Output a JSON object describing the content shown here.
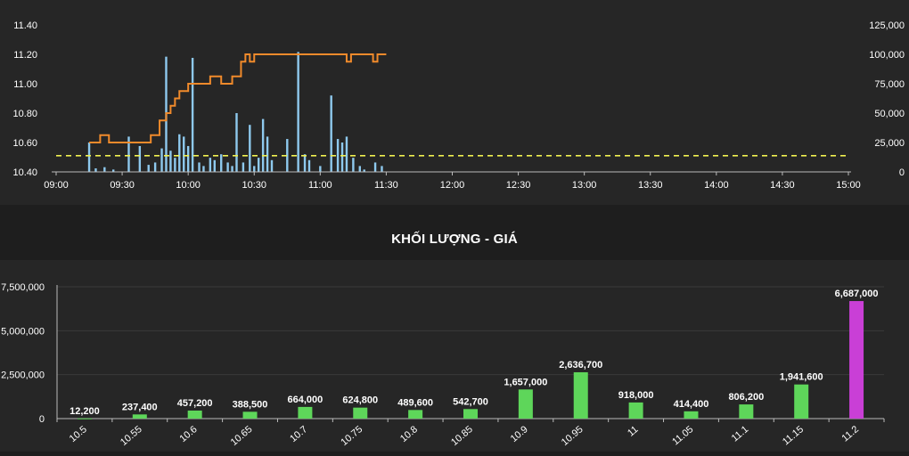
{
  "chart_data": [
    {
      "type": "line",
      "x_ticks": [
        "09:00",
        "09:30",
        "10:00",
        "10:30",
        "11:00",
        "11:30",
        "12:00",
        "12:30",
        "13:00",
        "13:30",
        "14:00",
        "14:30",
        "15:00"
      ],
      "y_left_ticks": [
        "10.40",
        "10.60",
        "10.80",
        "11.00",
        "11.20",
        "11.40"
      ],
      "y_left_range": [
        10.4,
        11.4
      ],
      "y_right_ticks": [
        "0",
        "25,000",
        "50,000",
        "75,000",
        "100,000",
        "125,000"
      ],
      "y_right_range": [
        0,
        125000
      ],
      "reference_price": 10.51,
      "colors": {
        "price": "#f08a2b",
        "volume": "#8ec9ee",
        "reference": "#f0f050"
      },
      "price_series": {
        "x": [
          "09:15",
          "09:18",
          "09:20",
          "09:24",
          "09:30",
          "09:35",
          "09:40",
          "09:43",
          "09:45",
          "09:47",
          "09:50",
          "09:52",
          "09:54",
          "09:56",
          "09:58",
          "10:00",
          "10:03",
          "10:06",
          "10:10",
          "10:15",
          "10:20",
          "10:24",
          "10:26",
          "10:28",
          "10:30",
          "10:33",
          "10:36",
          "10:40",
          "10:50",
          "11:00",
          "11:02",
          "11:10",
          "11:12",
          "11:14",
          "11:16",
          "11:18",
          "11:20",
          "11:22",
          "11:24",
          "11:26",
          "11:28",
          "11:30"
        ],
        "y": [
          10.6,
          10.6,
          10.65,
          10.6,
          10.6,
          10.6,
          10.6,
          10.65,
          10.65,
          10.75,
          10.8,
          10.85,
          10.9,
          10.95,
          10.95,
          11.0,
          11.0,
          11.0,
          11.05,
          11.0,
          11.05,
          11.15,
          11.2,
          11.15,
          11.2,
          11.2,
          11.2,
          11.2,
          11.2,
          11.2,
          11.2,
          11.2,
          11.15,
          11.2,
          11.2,
          11.2,
          11.2,
          11.2,
          11.15,
          11.2,
          11.2,
          11.2
        ]
      },
      "volume_series": {
        "x": [
          "09:15",
          "09:18",
          "09:22",
          "09:26",
          "09:33",
          "09:38",
          "09:42",
          "09:45",
          "09:48",
          "09:50",
          "09:52",
          "09:54",
          "09:56",
          "09:58",
          "10:00",
          "10:02",
          "10:05",
          "10:07",
          "10:10",
          "10:12",
          "10:15",
          "10:18",
          "10:20",
          "10:22",
          "10:25",
          "10:28",
          "10:30",
          "10:32",
          "10:34",
          "10:36",
          "10:38",
          "10:45",
          "10:50",
          "10:53",
          "10:55",
          "11:00",
          "11:05",
          "11:08",
          "11:10",
          "11:12",
          "11:15",
          "11:18",
          "11:20",
          "11:25",
          "11:28"
        ],
        "y": [
          25000,
          3000,
          4000,
          2000,
          30000,
          22000,
          6000,
          8000,
          20000,
          98000,
          18000,
          12000,
          32000,
          30000,
          22000,
          97000,
          8000,
          5000,
          12000,
          10000,
          15000,
          8000,
          5000,
          50000,
          8000,
          40000,
          5000,
          12000,
          45000,
          30000,
          10000,
          28000,
          102000,
          15000,
          10000,
          5000,
          65000,
          28000,
          25000,
          30000,
          12000,
          5000,
          2000,
          8000,
          5000
        ]
      }
    },
    {
      "type": "bar",
      "title": "KHỐI LƯỢNG - GIÁ",
      "categories": [
        "10.5",
        "10.55",
        "10.6",
        "10.65",
        "10.7",
        "10.75",
        "10.8",
        "10.85",
        "10.9",
        "10.95",
        "11",
        "11.05",
        "11.1",
        "11.15",
        "11.2"
      ],
      "values": [
        12200,
        237400,
        457200,
        388500,
        664000,
        624800,
        489600,
        542700,
        1657000,
        2636700,
        918000,
        414400,
        806200,
        1941600,
        6687000
      ],
      "value_labels": [
        "12,200",
        "237,400",
        "457,200",
        "388,500",
        "664,000",
        "624,800",
        "489,600",
        "542,700",
        "1,657,000",
        "2,636,700",
        "918,000",
        "414,400",
        "806,200",
        "1,941,600",
        "6,687,000"
      ],
      "y_ticks": [
        "0",
        "2,500,000",
        "5,000,000",
        "7,500,000"
      ],
      "ylim": [
        0,
        7500000
      ],
      "colors": {
        "bar": "#5ed65a",
        "highlight": "#c93fd6"
      },
      "highlight_index": 14
    }
  ]
}
